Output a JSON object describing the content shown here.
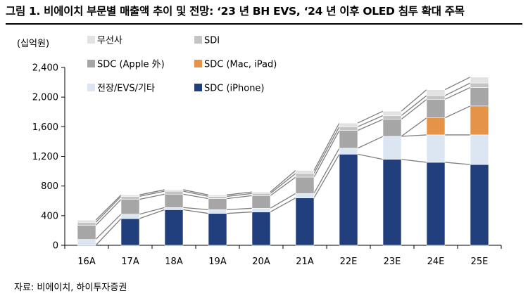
{
  "header": {
    "title": "그림 1. 비에이치 부문별 매출액 추이 및 전망: ‘23 년 BH EVS, ‘24 년 이후 OLED 침투 확대 주목"
  },
  "footer": {
    "source": "자료: 비에이치, 하이투자증권"
  },
  "chart_data": {
    "type": "bar",
    "stacked": true,
    "unit_label": "(십억원)",
    "categories": [
      "16A",
      "17A",
      "18A",
      "19A",
      "20A",
      "21A",
      "22E",
      "23E",
      "24E",
      "25E"
    ],
    "ylim": [
      0,
      2400
    ],
    "yticks": [
      0,
      400,
      800,
      1200,
      1600,
      2000,
      2400
    ],
    "ytick_labels": [
      "0",
      "400",
      "800",
      "1,200",
      "1,600",
      "2,000",
      "2,400"
    ],
    "grid": false,
    "legend_position": "top-left",
    "connector_lines": true,
    "series": [
      {
        "name": "SDC (iPhone)",
        "color": "#213F7D",
        "values": [
          0,
          360,
          480,
          430,
          450,
          640,
          1230,
          1160,
          1120,
          1090
        ]
      },
      {
        "name": "전장/EVS/기타",
        "color": "#DCE6F2",
        "values": [
          80,
          60,
          30,
          50,
          50,
          60,
          80,
          310,
          370,
          400
        ]
      },
      {
        "name": "SDC (Mac, iPad)",
        "color": "#E6934A",
        "values": [
          0,
          0,
          0,
          0,
          0,
          0,
          0,
          0,
          230,
          390
        ]
      },
      {
        "name": "SDC (Apple 外)",
        "color": "#A6A6A6",
        "values": [
          190,
          200,
          180,
          150,
          170,
          220,
          240,
          230,
          250,
          250
        ]
      },
      {
        "name": "SDI",
        "color": "#C4C4C4",
        "values": [
          40,
          40,
          40,
          30,
          30,
          50,
          50,
          50,
          50,
          60
        ]
      },
      {
        "name": "무선사",
        "color": "#E2E2E2",
        "values": [
          30,
          20,
          20,
          20,
          20,
          40,
          50,
          60,
          80,
          80
        ]
      }
    ],
    "legend_order": [
      "무선사",
      "SDI",
      "SDC (Apple 外)",
      "SDC (Mac, iPad)",
      "전장/EVS/기타",
      "SDC (iPhone)"
    ]
  }
}
